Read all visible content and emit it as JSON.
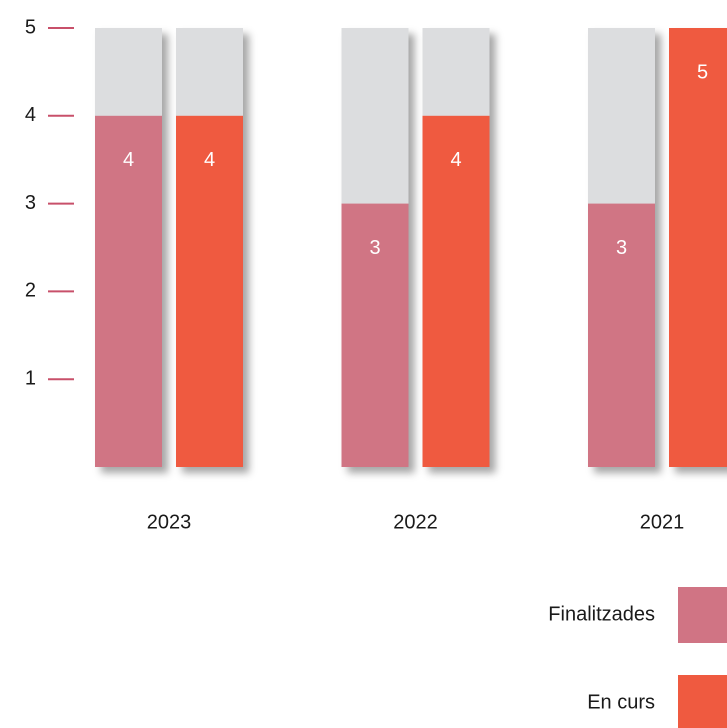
{
  "chart_data": {
    "type": "bar",
    "categories": [
      "2023",
      "2022",
      "2021"
    ],
    "series": [
      {
        "name": "Finalitzades",
        "color": "#d07484",
        "values": [
          4,
          3,
          3
        ]
      },
      {
        "name": "En curs",
        "color": "#ef5a40",
        "values": [
          4,
          4,
          5
        ]
      }
    ],
    "ylim": [
      0,
      5
    ],
    "yticks": [
      1,
      2,
      3,
      4,
      5
    ],
    "track_color": "#dcdddf",
    "tick_color": "#c8506a"
  }
}
